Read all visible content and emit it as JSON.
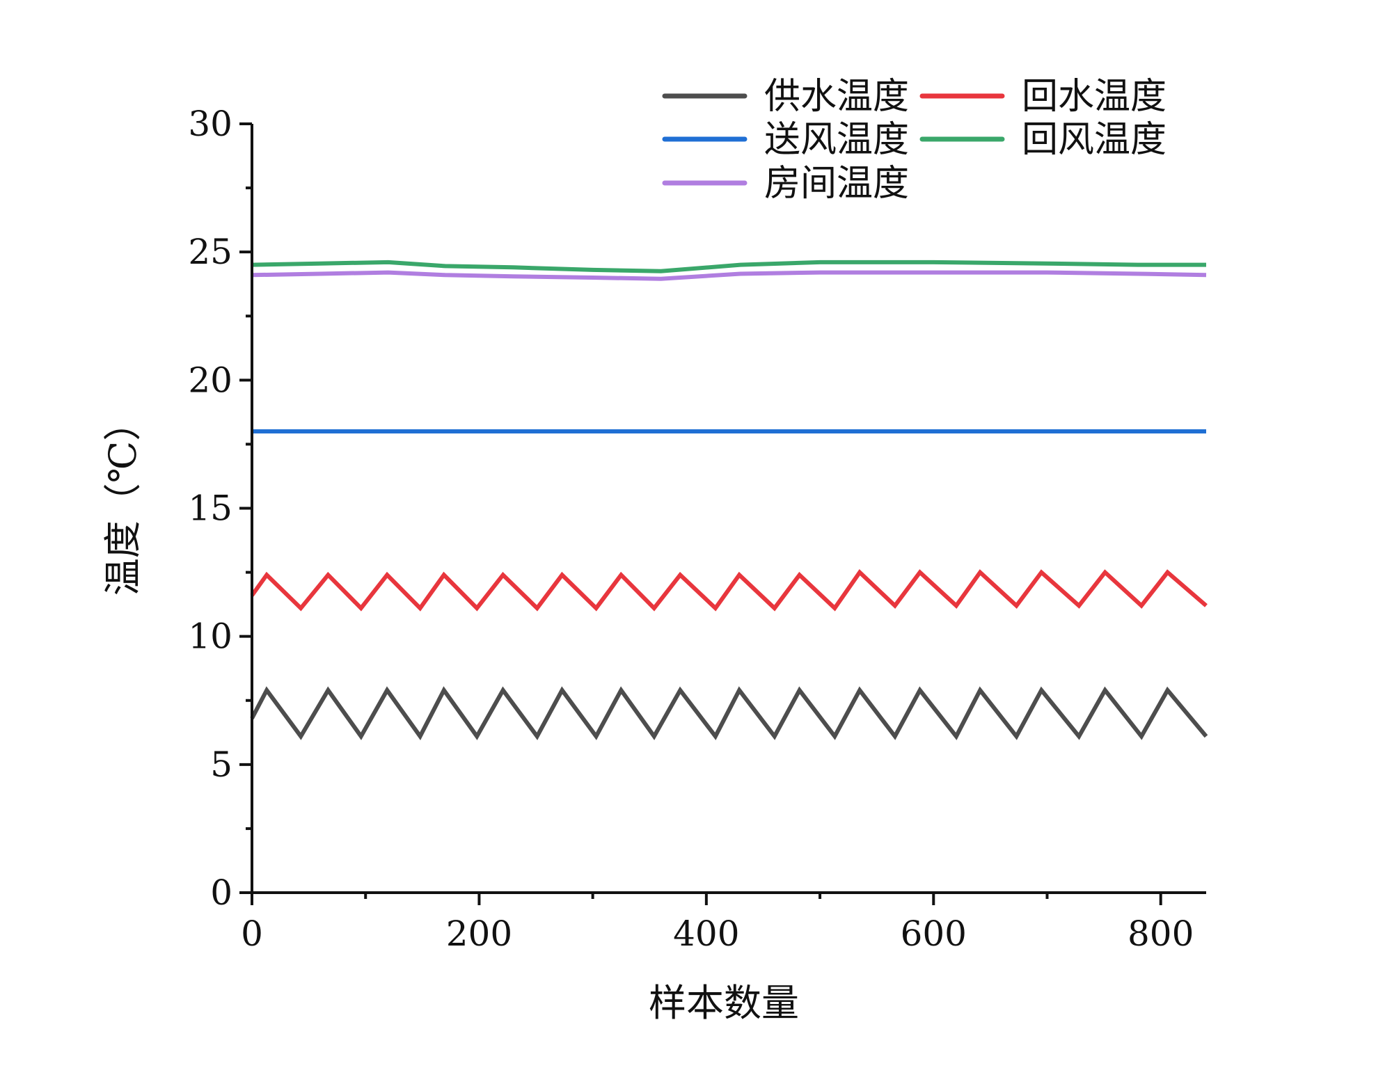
{
  "chart_data": {
    "type": "line",
    "title": "",
    "xlabel": "样本数量",
    "ylabel": "温度（℃）",
    "xlim": [
      0,
      840
    ],
    "ylim": [
      0,
      30
    ],
    "xticks": [
      0,
      200,
      400,
      600,
      800
    ],
    "xtick_labels": [
      "0",
      "200",
      "400",
      "600",
      "800"
    ],
    "yticks": [
      0,
      5,
      10,
      15,
      20,
      25,
      30
    ],
    "ytick_labels": [
      "0",
      "5",
      "10",
      "15",
      "20",
      "25",
      "30"
    ],
    "grid": false,
    "legend_position": "top-right",
    "series": [
      {
        "name": "供水温度",
        "color": "#4d4d4d",
        "x": [
          0,
          13,
          43,
          67,
          96,
          119,
          148,
          169,
          198,
          221,
          251,
          273,
          303,
          325,
          354,
          377,
          408,
          429,
          460,
          482,
          513,
          535,
          566,
          588,
          620,
          641,
          673,
          695,
          728,
          751,
          783,
          806,
          840
        ],
        "y": [
          6.8,
          7.9,
          6.1,
          7.9,
          6.1,
          7.9,
          6.1,
          7.9,
          6.1,
          7.9,
          6.1,
          7.9,
          6.1,
          7.9,
          6.1,
          7.9,
          6.1,
          7.9,
          6.1,
          7.9,
          6.1,
          7.9,
          6.1,
          7.9,
          6.1,
          7.9,
          6.1,
          7.9,
          6.1,
          7.9,
          6.1,
          7.9,
          6.1
        ]
      },
      {
        "name": "回水温度",
        "color": "#e8363d",
        "x": [
          0,
          13,
          43,
          67,
          96,
          119,
          148,
          169,
          198,
          221,
          251,
          273,
          303,
          325,
          354,
          377,
          408,
          429,
          460,
          482,
          513,
          535,
          566,
          588,
          620,
          641,
          673,
          695,
          728,
          751,
          783,
          806,
          840
        ],
        "y": [
          11.6,
          12.4,
          11.1,
          12.4,
          11.1,
          12.4,
          11.1,
          12.4,
          11.1,
          12.4,
          11.1,
          12.4,
          11.1,
          12.4,
          11.1,
          12.4,
          11.1,
          12.4,
          11.1,
          12.4,
          11.1,
          12.5,
          11.2,
          12.5,
          11.2,
          12.5,
          11.2,
          12.5,
          11.2,
          12.5,
          11.2,
          12.5,
          11.2
        ]
      },
      {
        "name": "送风温度",
        "color": "#1f6fd4",
        "x": [
          0,
          840
        ],
        "y": [
          18.0,
          18.0
        ]
      },
      {
        "name": "回风温度",
        "color": "#3aa76a",
        "x": [
          0,
          60,
          120,
          170,
          230,
          300,
          360,
          430,
          500,
          600,
          700,
          780,
          840
        ],
        "y": [
          24.5,
          24.55,
          24.6,
          24.45,
          24.4,
          24.3,
          24.25,
          24.5,
          24.6,
          24.6,
          24.55,
          24.5,
          24.5
        ]
      },
      {
        "name": "房间温度",
        "color": "#b07ee0",
        "x": [
          0,
          60,
          120,
          170,
          230,
          300,
          360,
          430,
          500,
          600,
          700,
          780,
          840
        ],
        "y": [
          24.1,
          24.15,
          24.2,
          24.1,
          24.05,
          24.0,
          23.95,
          24.15,
          24.2,
          24.2,
          24.2,
          24.15,
          24.1
        ]
      }
    ],
    "legend_order": [
      "供水温度",
      "回水温度",
      "送风温度",
      "回风温度",
      "房间温度"
    ]
  }
}
